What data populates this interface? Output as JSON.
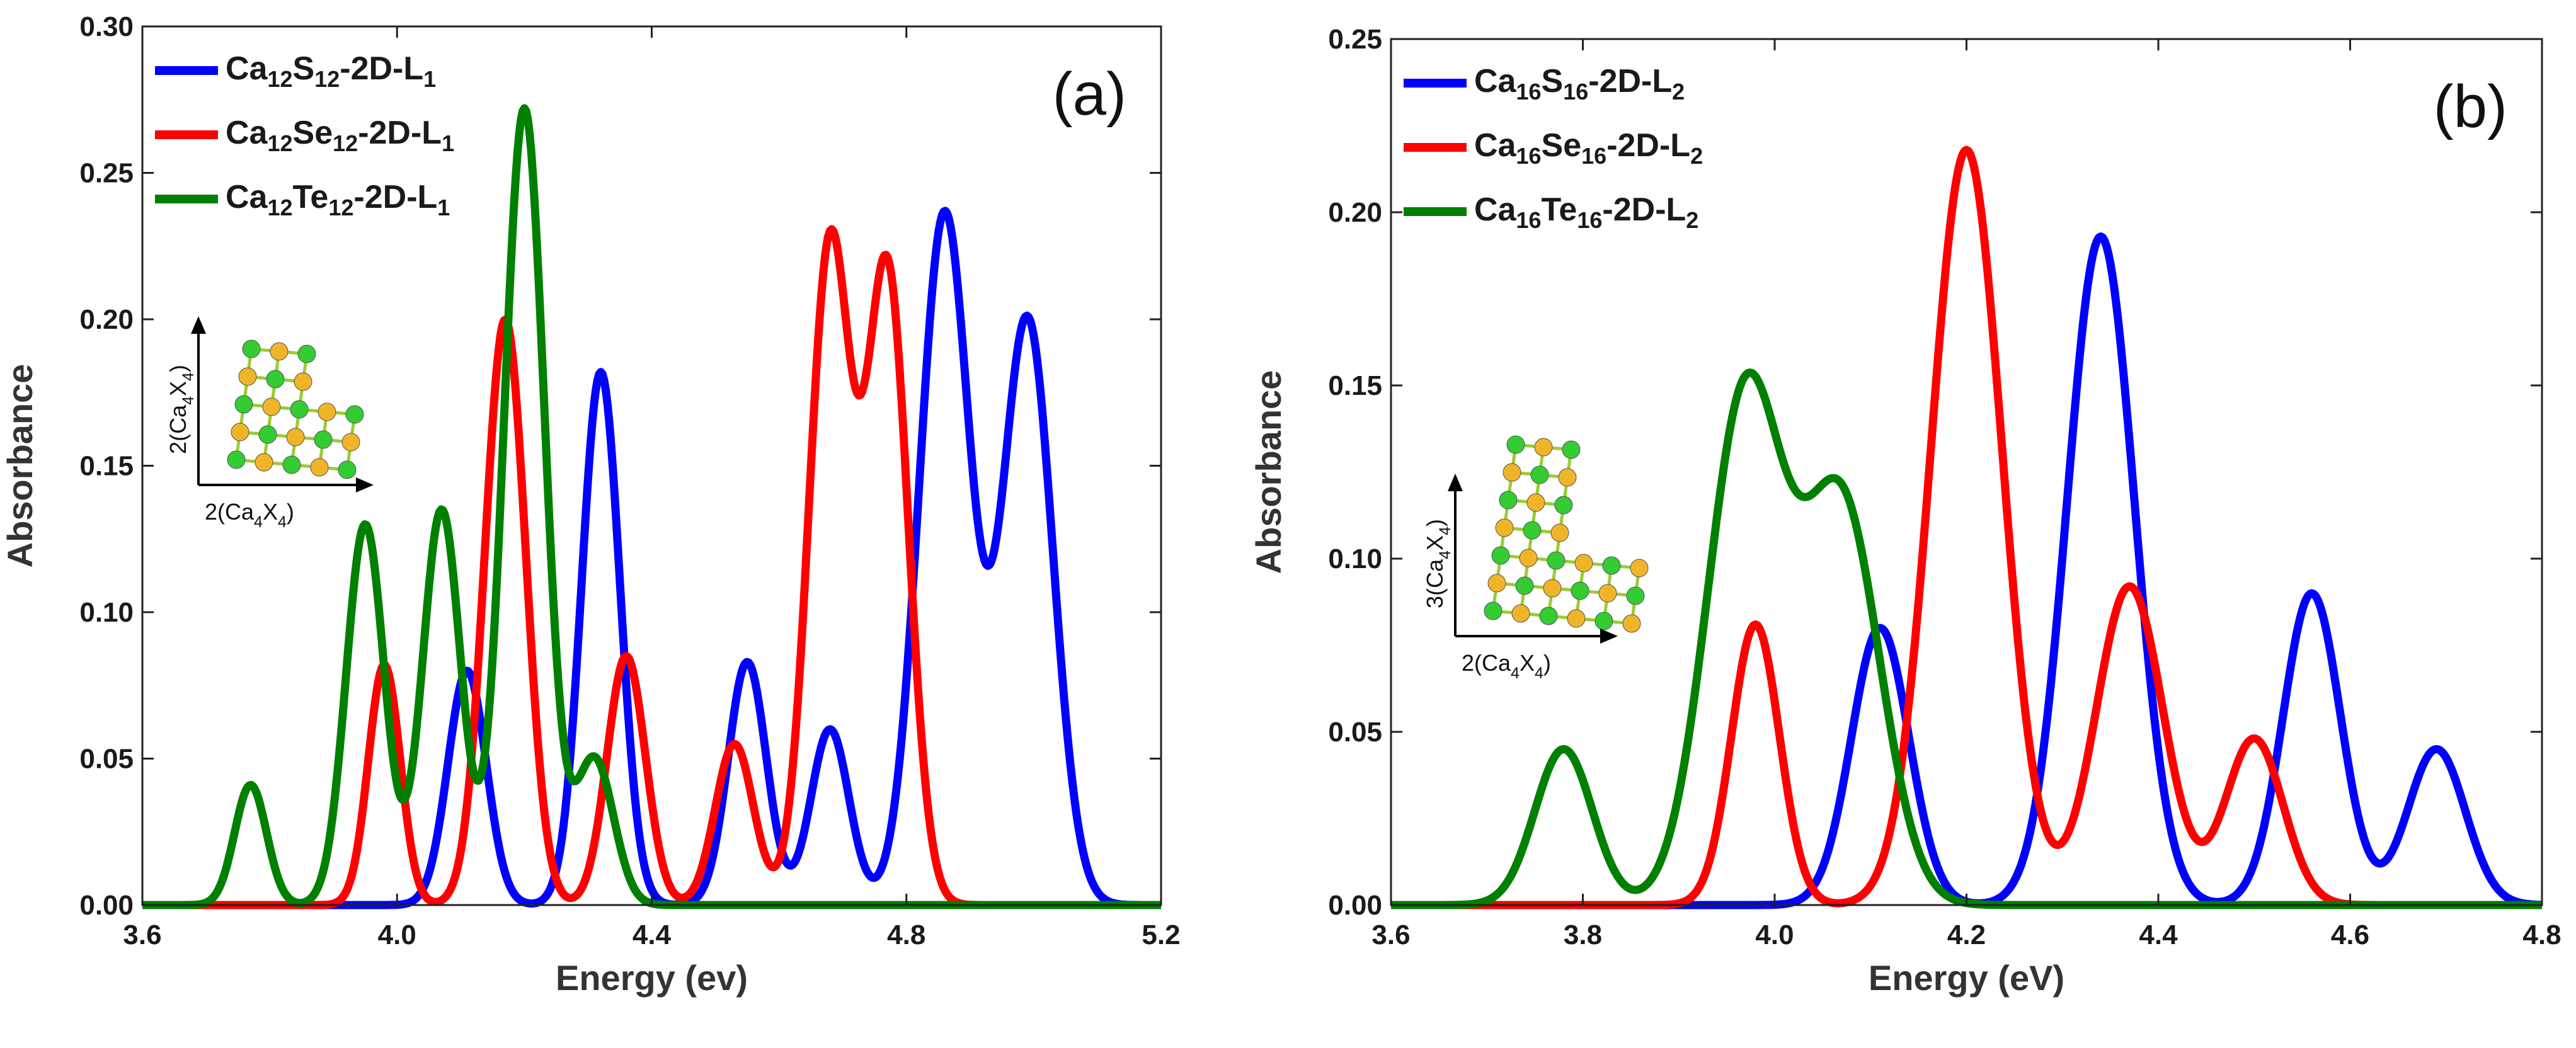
{
  "chart_data": [
    {
      "type": "line",
      "panel_label": "(a)",
      "xlabel": "Energy (ev)",
      "ylabel": "Absorbance",
      "xlim": [
        3.6,
        5.2
      ],
      "ylim": [
        0,
        0.3
      ],
      "xticks": [
        "3.6",
        "4.0",
        "4.4",
        "4.8",
        "5.2"
      ],
      "yticks": [
        "0.00",
        "0.05",
        "0.10",
        "0.15",
        "0.20",
        "0.25",
        "0.30"
      ],
      "legend_position": "top-left",
      "series": [
        {
          "name": "Ca12S12-2D-L1",
          "name_parts": [
            "Ca",
            "12",
            "S",
            "12",
            "-2D-L",
            "1"
          ],
          "color": "#0000ff",
          "peaks": [
            [
              4.11,
              0.08,
              0.03
            ],
            [
              4.32,
              0.182,
              0.03
            ],
            [
              4.55,
              0.083,
              0.03
            ],
            [
              4.68,
              0.06,
              0.03
            ],
            [
              4.86,
              0.236,
              0.04
            ],
            [
              4.99,
              0.2,
              0.04
            ]
          ]
        },
        {
          "name": "Ca12Se12-2D-L1",
          "name_parts": [
            "Ca",
            "12",
            "Se",
            "12",
            "-2D-L",
            "1"
          ],
          "color": "#ff0000",
          "peaks": [
            [
              3.98,
              0.082,
              0.025
            ],
            [
              4.17,
              0.2,
              0.032
            ],
            [
              4.36,
              0.085,
              0.03
            ],
            [
              4.53,
              0.055,
              0.03
            ],
            [
              4.68,
              0.225,
              0.033
            ],
            [
              4.77,
              0.216,
              0.033
            ]
          ]
        },
        {
          "name": "Ca12Te12-2D-L1",
          "name_parts": [
            "Ca",
            "12",
            "Te",
            "12",
            "-2D-L",
            "1"
          ],
          "color": "#008000",
          "peaks": [
            [
              3.77,
              0.041,
              0.025
            ],
            [
              3.95,
              0.13,
              0.03
            ],
            [
              4.07,
              0.135,
              0.03
            ],
            [
              4.2,
              0.272,
              0.032
            ],
            [
              4.31,
              0.05,
              0.03
            ]
          ]
        }
      ],
      "inset": {
        "x_label_parts": [
          "2(Ca",
          "4",
          "X",
          "4",
          ")"
        ],
        "y_label_parts": [
          "2(Ca",
          "4",
          "X",
          "4",
          ")"
        ]
      }
    },
    {
      "type": "line",
      "panel_label": "(b)",
      "xlabel": "Energy (eV)",
      "ylabel": "Absorbance",
      "xlim": [
        3.6,
        4.8
      ],
      "ylim": [
        0,
        0.25
      ],
      "xticks": [
        "3.6",
        "3.8",
        "4.0",
        "4.2",
        "4.4",
        "4.6",
        "4.8"
      ],
      "yticks": [
        "0.00",
        "0.05",
        "0.10",
        "0.15",
        "0.20",
        "0.25"
      ],
      "legend_position": "top-left",
      "series": [
        {
          "name": "Ca16S16-2D-L2",
          "name_parts": [
            "Ca",
            "16",
            "S",
            "16",
            "-2D-L",
            "2"
          ],
          "color": "#0000ff",
          "peaks": [
            [
              4.11,
              0.08,
              0.03
            ],
            [
              4.34,
              0.193,
              0.035
            ],
            [
              4.56,
              0.09,
              0.03
            ],
            [
              4.69,
              0.045,
              0.03
            ]
          ]
        },
        {
          "name": "Ca16Se16-2D-L2",
          "name_parts": [
            "Ca",
            "16",
            "Se",
            "16",
            "-2D-L",
            "2"
          ],
          "color": "#ff0000",
          "peaks": [
            [
              3.98,
              0.081,
              0.025
            ],
            [
              4.2,
              0.218,
              0.037
            ],
            [
              4.37,
              0.092,
              0.035
            ],
            [
              4.5,
              0.048,
              0.03
            ]
          ]
        },
        {
          "name": "Ca16Te16-2D-L2",
          "name_parts": [
            "Ca",
            "16",
            "Te",
            "16",
            "-2D-L",
            "2"
          ],
          "color": "#008000",
          "peaks": [
            [
              3.78,
              0.045,
              0.03
            ],
            [
              3.97,
              0.148,
              0.04
            ],
            [
              4.07,
              0.115,
              0.04
            ]
          ]
        }
      ],
      "inset": {
        "x_label_parts": [
          "2(Ca",
          "4",
          "X",
          "4",
          ")"
        ],
        "y_label_parts": [
          "3(Ca",
          "4",
          "X",
          "4",
          ")"
        ]
      }
    }
  ],
  "colors": {
    "blue": "#0000ff",
    "red": "#ff0000",
    "green": "#008000",
    "atom_ca": "#33cc33",
    "atom_x": "#f0b429",
    "bond": "#9acd32"
  }
}
